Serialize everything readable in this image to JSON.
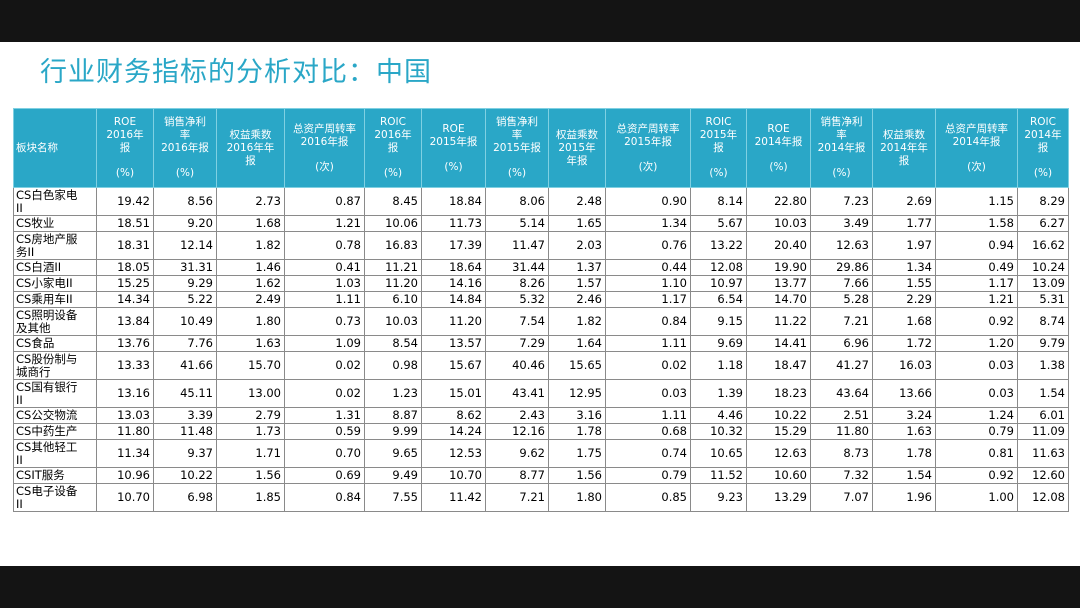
{
  "title": "行业财务指标的分析对比：中国",
  "table": {
    "first_header": "板块名称",
    "headers": [
      {
        "label": "ROE\n2016年\n报",
        "unit": "(%)"
      },
      {
        "label": "销售净利\n率\n2016年报",
        "unit": "(%)"
      },
      {
        "label": "权益乘数\n2016年年\n报",
        "unit": ""
      },
      {
        "label": "总资产周转率\n2016年报",
        "unit": "(次)"
      },
      {
        "label": "ROIC\n2016年\n报",
        "unit": "(%)"
      },
      {
        "label": "ROE\n2015年报",
        "unit": "(%)"
      },
      {
        "label": "销售净利\n率\n2015年报",
        "unit": "(%)"
      },
      {
        "label": "权益乘数\n2015年\n年报",
        "unit": ""
      },
      {
        "label": "总资产周转率\n2015年报",
        "unit": "(次)"
      },
      {
        "label": "ROIC\n2015年\n报",
        "unit": "(%)"
      },
      {
        "label": "ROE\n2014年报",
        "unit": "(%)"
      },
      {
        "label": "销售净利\n率\n2014年报",
        "unit": "(%)"
      },
      {
        "label": "权益乘数\n2014年年\n报",
        "unit": ""
      },
      {
        "label": "总资产周转率\n2014年报",
        "unit": "(次)"
      },
      {
        "label": "ROIC\n2014年\n报",
        "unit": "(%)"
      }
    ],
    "rows": [
      {
        "name": "CS白色家电\nII",
        "tall": true,
        "values": [
          "19.42",
          "8.56",
          "2.73",
          "0.87",
          "8.45",
          "18.84",
          "8.06",
          "2.48",
          "0.90",
          "8.14",
          "22.80",
          "7.23",
          "2.69",
          "1.15",
          "8.29"
        ]
      },
      {
        "name": "CS牧业",
        "tall": false,
        "values": [
          "18.51",
          "9.20",
          "1.68",
          "1.21",
          "10.06",
          "11.73",
          "5.14",
          "1.65",
          "1.34",
          "5.67",
          "10.03",
          "3.49",
          "1.77",
          "1.58",
          "6.27"
        ]
      },
      {
        "name": "CS房地产服\n务II",
        "tall": true,
        "values": [
          "18.31",
          "12.14",
          "1.82",
          "0.78",
          "16.83",
          "17.39",
          "11.47",
          "2.03",
          "0.76",
          "13.22",
          "20.40",
          "12.63",
          "1.97",
          "0.94",
          "16.62"
        ]
      },
      {
        "name": "CS白酒II",
        "tall": false,
        "values": [
          "18.05",
          "31.31",
          "1.46",
          "0.41",
          "11.21",
          "18.64",
          "31.44",
          "1.37",
          "0.44",
          "12.08",
          "19.90",
          "29.86",
          "1.34",
          "0.49",
          "10.24"
        ]
      },
      {
        "name": "CS小家电II",
        "tall": false,
        "values": [
          "15.25",
          "9.29",
          "1.62",
          "1.03",
          "11.20",
          "14.16",
          "8.26",
          "1.57",
          "1.10",
          "10.97",
          "13.77",
          "7.66",
          "1.55",
          "1.17",
          "13.09"
        ]
      },
      {
        "name": "CS乘用车II",
        "tall": false,
        "values": [
          "14.34",
          "5.22",
          "2.49",
          "1.11",
          "6.10",
          "14.84",
          "5.32",
          "2.46",
          "1.17",
          "6.54",
          "14.70",
          "5.28",
          "2.29",
          "1.21",
          "5.31"
        ]
      },
      {
        "name": "CS照明设备\n及其他",
        "tall": true,
        "values": [
          "13.84",
          "10.49",
          "1.80",
          "0.73",
          "10.03",
          "11.20",
          "7.54",
          "1.82",
          "0.84",
          "9.15",
          "11.22",
          "7.21",
          "1.68",
          "0.92",
          "8.74"
        ]
      },
      {
        "name": "CS食品",
        "tall": false,
        "values": [
          "13.76",
          "7.76",
          "1.63",
          "1.09",
          "8.54",
          "13.57",
          "7.29",
          "1.64",
          "1.11",
          "9.69",
          "14.41",
          "6.96",
          "1.72",
          "1.20",
          "9.79"
        ]
      },
      {
        "name": "CS股份制与\n城商行",
        "tall": true,
        "values": [
          "13.33",
          "41.66",
          "15.70",
          "0.02",
          "0.98",
          "15.67",
          "40.46",
          "15.65",
          "0.02",
          "1.18",
          "18.47",
          "41.27",
          "16.03",
          "0.03",
          "1.38"
        ]
      },
      {
        "name": "CS国有银行\nII",
        "tall": true,
        "values": [
          "13.16",
          "45.11",
          "13.00",
          "0.02",
          "1.23",
          "15.01",
          "43.41",
          "12.95",
          "0.03",
          "1.39",
          "18.23",
          "43.64",
          "13.66",
          "0.03",
          "1.54"
        ]
      },
      {
        "name": "CS公交物流",
        "tall": false,
        "values": [
          "13.03",
          "3.39",
          "2.79",
          "1.31",
          "8.87",
          "8.62",
          "2.43",
          "3.16",
          "1.11",
          "4.46",
          "10.22",
          "2.51",
          "3.24",
          "1.24",
          "6.01"
        ]
      },
      {
        "name": "CS中药生产",
        "tall": false,
        "values": [
          "11.80",
          "11.48",
          "1.73",
          "0.59",
          "9.99",
          "14.24",
          "12.16",
          "1.78",
          "0.68",
          "10.32",
          "15.29",
          "11.80",
          "1.63",
          "0.79",
          "11.09"
        ]
      },
      {
        "name": "CS其他轻工\nII",
        "tall": true,
        "values": [
          "11.34",
          "9.37",
          "1.71",
          "0.70",
          "9.65",
          "12.53",
          "9.62",
          "1.75",
          "0.74",
          "10.65",
          "12.63",
          "8.73",
          "1.78",
          "0.81",
          "11.63"
        ]
      },
      {
        "name": "CSIT服务",
        "tall": false,
        "values": [
          "10.96",
          "10.22",
          "1.56",
          "0.69",
          "9.49",
          "10.70",
          "8.77",
          "1.56",
          "0.79",
          "11.52",
          "10.60",
          "7.32",
          "1.54",
          "0.92",
          "12.60"
        ]
      },
      {
        "name": "CS电子设备\nII",
        "tall": true,
        "values": [
          "10.70",
          "6.98",
          "1.85",
          "0.84",
          "7.55",
          "11.42",
          "7.21",
          "1.80",
          "0.85",
          "9.23",
          "13.29",
          "7.07",
          "1.96",
          "1.00",
          "12.08"
        ]
      }
    ]
  }
}
